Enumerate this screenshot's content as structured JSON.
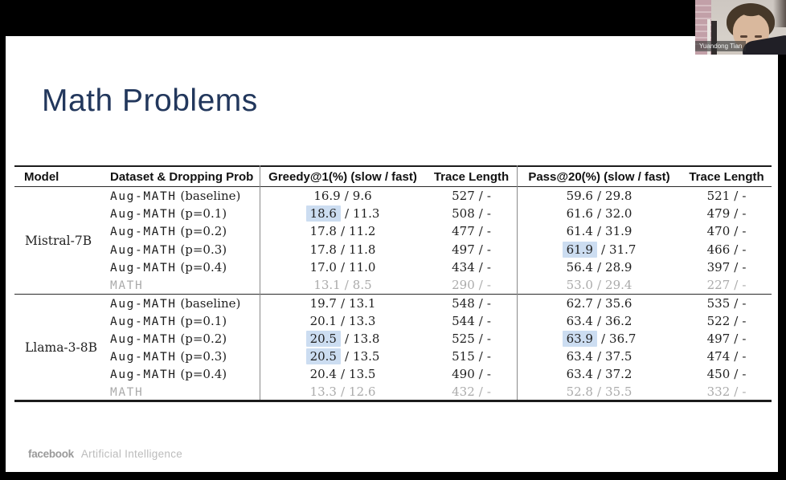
{
  "colors": {
    "title": "#22375c",
    "highlight": "#ccddf1",
    "muted_text": "#ababab",
    "frame": "#000000"
  },
  "webcam": {
    "name": "Yuandong Tian"
  },
  "slide": {
    "title": "Math Problems",
    "footer": {
      "brand": "facebook",
      "division": "Artificial Intelligence"
    }
  },
  "table": {
    "sep": "/",
    "headers": [
      "Model",
      "Dataset & Dropping Prob",
      "Greedy@1(%) (slow / fast)",
      "Trace Length",
      "Pass@20(%) (slow / fast)",
      "Trace Length"
    ],
    "groups": [
      {
        "model": "Mistral-7B",
        "rows": [
          {
            "ds_name": "Aug-MATH",
            "ds_suffix": " (baseline)",
            "greedy": {
              "slow": "16.9",
              "fast": "9.6",
              "hl": false
            },
            "trace1": {
              "slow": "527",
              "fast": "-"
            },
            "pass": {
              "slow": "59.6",
              "fast": "29.8",
              "hl": false
            },
            "trace2": {
              "slow": "521",
              "fast": "-"
            },
            "muted": false
          },
          {
            "ds_name": "Aug-MATH",
            "ds_suffix": " (p=0.1)",
            "greedy": {
              "slow": "18.6",
              "fast": "11.3",
              "hl": true
            },
            "trace1": {
              "slow": "508",
              "fast": "-"
            },
            "pass": {
              "slow": "61.6",
              "fast": "32.0",
              "hl": false
            },
            "trace2": {
              "slow": "479",
              "fast": "-"
            },
            "muted": false
          },
          {
            "ds_name": "Aug-MATH",
            "ds_suffix": " (p=0.2)",
            "greedy": {
              "slow": "17.8",
              "fast": "11.2",
              "hl": false
            },
            "trace1": {
              "slow": "477",
              "fast": "-"
            },
            "pass": {
              "slow": "61.4",
              "fast": "31.9",
              "hl": false
            },
            "trace2": {
              "slow": "470",
              "fast": "-"
            },
            "muted": false
          },
          {
            "ds_name": "Aug-MATH",
            "ds_suffix": " (p=0.3)",
            "greedy": {
              "slow": "17.8",
              "fast": "11.8",
              "hl": false
            },
            "trace1": {
              "slow": "497",
              "fast": "-"
            },
            "pass": {
              "slow": "61.9",
              "fast": "31.7",
              "hl": true
            },
            "trace2": {
              "slow": "466",
              "fast": "-"
            },
            "muted": false
          },
          {
            "ds_name": "Aug-MATH",
            "ds_suffix": " (p=0.4)",
            "greedy": {
              "slow": "17.0",
              "fast": "11.0",
              "hl": false
            },
            "trace1": {
              "slow": "434",
              "fast": "-"
            },
            "pass": {
              "slow": "56.4",
              "fast": "28.9",
              "hl": false
            },
            "trace2": {
              "slow": "397",
              "fast": "-"
            },
            "muted": false
          },
          {
            "ds_name": "MATH",
            "ds_suffix": "",
            "greedy": {
              "slow": "13.1",
              "fast": "8.5",
              "hl": false
            },
            "trace1": {
              "slow": "290",
              "fast": "-"
            },
            "pass": {
              "slow": "53.0",
              "fast": "29.4",
              "hl": false
            },
            "trace2": {
              "slow": "227",
              "fast": "-"
            },
            "muted": true
          }
        ]
      },
      {
        "model": "Llama-3-8B",
        "rows": [
          {
            "ds_name": "Aug-MATH",
            "ds_suffix": " (baseline)",
            "greedy": {
              "slow": "19.7",
              "fast": "13.1",
              "hl": false
            },
            "trace1": {
              "slow": "548",
              "fast": "-"
            },
            "pass": {
              "slow": "62.7",
              "fast": "35.6",
              "hl": false
            },
            "trace2": {
              "slow": "535",
              "fast": "-"
            },
            "muted": false
          },
          {
            "ds_name": "Aug-MATH",
            "ds_suffix": " (p=0.1)",
            "greedy": {
              "slow": "20.1",
              "fast": "13.3",
              "hl": false
            },
            "trace1": {
              "slow": "544",
              "fast": "-"
            },
            "pass": {
              "slow": "63.4",
              "fast": "36.2",
              "hl": false
            },
            "trace2": {
              "slow": "522",
              "fast": "-"
            },
            "muted": false
          },
          {
            "ds_name": "Aug-MATH",
            "ds_suffix": " (p=0.2)",
            "greedy": {
              "slow": "20.5",
              "fast": "13.8",
              "hl": true
            },
            "trace1": {
              "slow": "525",
              "fast": "-"
            },
            "pass": {
              "slow": "63.9",
              "fast": "36.7",
              "hl": true
            },
            "trace2": {
              "slow": "497",
              "fast": "-"
            },
            "muted": false
          },
          {
            "ds_name": "Aug-MATH",
            "ds_suffix": " (p=0.3)",
            "greedy": {
              "slow": "20.5",
              "fast": "13.5",
              "hl": true
            },
            "trace1": {
              "slow": "515",
              "fast": "-"
            },
            "pass": {
              "slow": "63.4",
              "fast": "37.5",
              "hl": false
            },
            "trace2": {
              "slow": "474",
              "fast": "-"
            },
            "muted": false
          },
          {
            "ds_name": "Aug-MATH",
            "ds_suffix": " (p=0.4)",
            "greedy": {
              "slow": "20.4",
              "fast": "13.5",
              "hl": false
            },
            "trace1": {
              "slow": "490",
              "fast": "-"
            },
            "pass": {
              "slow": "63.4",
              "fast": "37.2",
              "hl": false
            },
            "trace2": {
              "slow": "450",
              "fast": "-"
            },
            "muted": false
          },
          {
            "ds_name": "MATH",
            "ds_suffix": "",
            "greedy": {
              "slow": "13.3",
              "fast": "12.6",
              "hl": false
            },
            "trace1": {
              "slow": "432",
              "fast": "-"
            },
            "pass": {
              "slow": "52.8",
              "fast": "35.5",
              "hl": false
            },
            "trace2": {
              "slow": "332",
              "fast": "-"
            },
            "muted": true
          }
        ]
      }
    ]
  }
}
